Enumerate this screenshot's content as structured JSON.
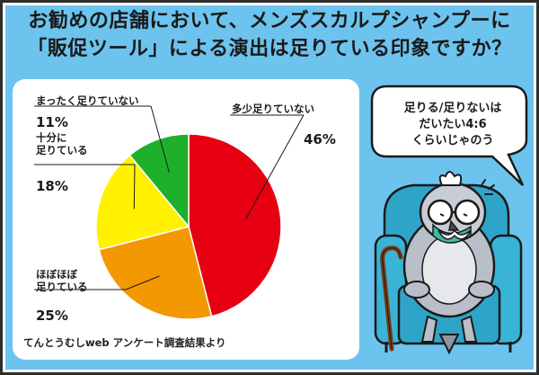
{
  "title_line1": "お勧めの店舗において、メンズスカルプシャンプーに",
  "title_line2": "「販促ツール」による演出は足りている印象ですか？",
  "source": "てんとうむしweb アンケート調査結果より",
  "bubble_text": "足りる/足りないは\nだいたい4:6\nくらいじゃのう",
  "chart_data": {
    "type": "pie",
    "title": "",
    "start_angle_deg": 0,
    "slices": [
      {
        "label": "多少足りていない",
        "value": 46,
        "display": "46%",
        "color": "#e60012"
      },
      {
        "label": "ほぼほぼ\n足りている",
        "value": 25,
        "display": "25%",
        "color": "#f39800"
      },
      {
        "label": "十分に\n足りている",
        "value": 18,
        "display": "18%",
        "color": "#fff100"
      },
      {
        "label": "まったく足りていない",
        "value": 11,
        "display": "11%",
        "color": "#1fb02b"
      }
    ]
  }
}
